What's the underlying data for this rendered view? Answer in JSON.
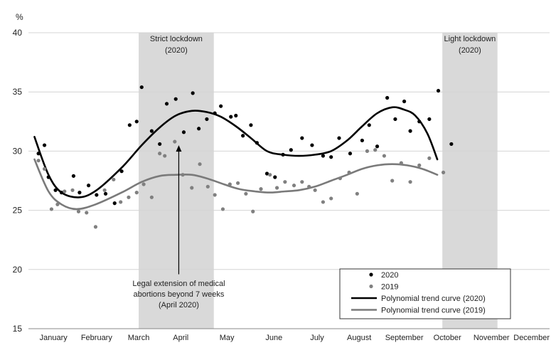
{
  "chart_data": {
    "type": "scatter",
    "ylabel": "%",
    "ylim": [
      15,
      40
    ],
    "yticks": [
      15,
      20,
      25,
      30,
      35,
      40
    ],
    "xlim": [
      0,
      52
    ],
    "months": [
      {
        "label": "January",
        "week": 2.5
      },
      {
        "label": "February",
        "week": 6.8
      },
      {
        "label": "March",
        "week": 11.0
      },
      {
        "label": "April",
        "week": 15.2
      },
      {
        "label": "May",
        "week": 19.8
      },
      {
        "label": "June",
        "week": 24.5
      },
      {
        "label": "July",
        "week": 28.8
      },
      {
        "label": "August",
        "week": 33.0
      },
      {
        "label": "September",
        "week": 37.5
      },
      {
        "label": "October",
        "week": 41.8
      },
      {
        "label": "November",
        "week": 46.2
      },
      {
        "label": "December",
        "week": 50.2
      }
    ],
    "shaded_regions": [
      {
        "x0": 11.0,
        "x1": 18.5,
        "label_line1": "Strict lockdown",
        "label_line2": "(2020)"
      },
      {
        "x0": 41.3,
        "x1": 46.8,
        "label_line1": "Light lockdown",
        "label_line2": "(2020)"
      }
    ],
    "annotation": {
      "lines": [
        "Legal extension of medical",
        "abortions beyond 7 weeks",
        "(April 2020)"
      ],
      "x": 15.0,
      "y_label": 19.6,
      "arrow_to_y": 30.5
    },
    "series": [
      {
        "name": "2020",
        "color": "#000000",
        "points": [
          [
            1,
            29.8
          ],
          [
            1.6,
            30.5
          ],
          [
            2,
            27.8
          ],
          [
            2.7,
            26.7
          ],
          [
            3.3,
            26.5
          ],
          [
            4.5,
            27.9
          ],
          [
            5.1,
            26.5
          ],
          [
            6,
            27.1
          ],
          [
            6.8,
            26.3
          ],
          [
            7.7,
            26.4
          ],
          [
            8.6,
            25.6
          ],
          [
            9.3,
            28.3
          ],
          [
            10.1,
            32.2
          ],
          [
            10.8,
            32.5
          ],
          [
            11.3,
            35.4
          ],
          [
            12.3,
            31.7
          ],
          [
            13.1,
            30.6
          ],
          [
            13.8,
            34.0
          ],
          [
            14.7,
            34.4
          ],
          [
            15.5,
            31.6
          ],
          [
            16.4,
            34.9
          ],
          [
            17.0,
            31.9
          ],
          [
            17.8,
            32.7
          ],
          [
            18.6,
            33.2
          ],
          [
            19.2,
            33.8
          ],
          [
            20.2,
            32.9
          ],
          [
            20.7,
            33.0
          ],
          [
            21.4,
            31.3
          ],
          [
            22.2,
            32.2
          ],
          [
            22.8,
            30.7
          ],
          [
            23.8,
            28.1
          ],
          [
            24.6,
            27.8
          ],
          [
            25.4,
            29.7
          ],
          [
            26.2,
            30.1
          ],
          [
            27.3,
            31.1
          ],
          [
            28.3,
            30.5
          ],
          [
            29.4,
            29.6
          ],
          [
            30.2,
            29.5
          ],
          [
            31.0,
            31.1
          ],
          [
            32.1,
            29.8
          ],
          [
            33.3,
            30.9
          ],
          [
            34.0,
            32.2
          ],
          [
            34.8,
            30.4
          ],
          [
            35.8,
            34.5
          ],
          [
            36.6,
            32.7
          ],
          [
            37.5,
            34.2
          ],
          [
            38.1,
            31.7
          ],
          [
            39.0,
            32.5
          ],
          [
            40.0,
            32.7
          ],
          [
            40.9,
            35.1
          ],
          [
            42.2,
            30.6
          ]
        ]
      },
      {
        "name": "2019",
        "color": "#808080",
        "points": [
          [
            1,
            29.2
          ],
          [
            1.6,
            28.5
          ],
          [
            2.3,
            25.1
          ],
          [
            2.9,
            25.5
          ],
          [
            3.6,
            26.6
          ],
          [
            4.4,
            26.7
          ],
          [
            5.0,
            24.9
          ],
          [
            5.8,
            24.8
          ],
          [
            6.7,
            23.6
          ],
          [
            7.6,
            26.7
          ],
          [
            8.5,
            27.6
          ],
          [
            9.2,
            25.7
          ],
          [
            10.0,
            26.1
          ],
          [
            10.8,
            26.5
          ],
          [
            11.5,
            27.2
          ],
          [
            12.3,
            26.1
          ],
          [
            13.1,
            29.8
          ],
          [
            13.6,
            29.6
          ],
          [
            14.6,
            30.8
          ],
          [
            15.4,
            28.0
          ],
          [
            16.3,
            26.9
          ],
          [
            17.1,
            28.9
          ],
          [
            17.9,
            27.0
          ],
          [
            18.6,
            26.3
          ],
          [
            19.4,
            25.1
          ],
          [
            20.1,
            27.2
          ],
          [
            20.9,
            27.3
          ],
          [
            21.7,
            26.4
          ],
          [
            22.4,
            24.9
          ],
          [
            23.2,
            26.8
          ],
          [
            24.1,
            28.0
          ],
          [
            24.8,
            26.9
          ],
          [
            25.6,
            27.4
          ],
          [
            26.5,
            27.1
          ],
          [
            27.3,
            27.4
          ],
          [
            28.0,
            27.0
          ],
          [
            28.6,
            26.7
          ],
          [
            29.4,
            25.7
          ],
          [
            30.2,
            26.0
          ],
          [
            31.1,
            27.7
          ],
          [
            32.0,
            28.2
          ],
          [
            32.8,
            26.4
          ],
          [
            33.8,
            30.0
          ],
          [
            34.6,
            30.1
          ],
          [
            35.5,
            29.6
          ],
          [
            36.3,
            27.5
          ],
          [
            37.2,
            29.0
          ],
          [
            38.1,
            27.4
          ],
          [
            39.0,
            28.8
          ],
          [
            40.0,
            29.4
          ],
          [
            41.4,
            28.2
          ]
        ]
      }
    ],
    "trend_curves": [
      {
        "name": "Polynomial trend curve (2020)",
        "color": "#000000",
        "width": 2.6,
        "points": [
          [
            0.6,
            31.2
          ],
          [
            2,
            28.0
          ],
          [
            3.3,
            26.5
          ],
          [
            5.1,
            26.1
          ],
          [
            6.8,
            26.7
          ],
          [
            9.3,
            28.6
          ],
          [
            11.3,
            30.5
          ],
          [
            13.1,
            32.0
          ],
          [
            14.7,
            33.0
          ],
          [
            16.3,
            33.4
          ],
          [
            17.8,
            33.3
          ],
          [
            19.2,
            32.9
          ],
          [
            20.7,
            32.1
          ],
          [
            22.2,
            31.1
          ],
          [
            23.8,
            30.0
          ],
          [
            25.4,
            29.7
          ],
          [
            27.0,
            29.6
          ],
          [
            28.6,
            29.7
          ],
          [
            30.2,
            30.0
          ],
          [
            31.8,
            30.9
          ],
          [
            33.3,
            32.1
          ],
          [
            34.8,
            33.2
          ],
          [
            36.3,
            33.7
          ],
          [
            37.5,
            33.5
          ],
          [
            38.6,
            33.0
          ],
          [
            39.8,
            31.5
          ],
          [
            40.8,
            29.3
          ]
        ]
      },
      {
        "name": "Polynomial trend curve (2019)",
        "color": "#7a7a7a",
        "width": 2.6,
        "points": [
          [
            0.6,
            29.3
          ],
          [
            2,
            26.6
          ],
          [
            3.3,
            25.5
          ],
          [
            4.8,
            25.1
          ],
          [
            6.7,
            25.5
          ],
          [
            9.3,
            26.5
          ],
          [
            11.3,
            27.4
          ],
          [
            13.1,
            27.9
          ],
          [
            14.7,
            28.0
          ],
          [
            16.3,
            28.0
          ],
          [
            17.8,
            27.7
          ],
          [
            19.5,
            27.2
          ],
          [
            21.0,
            26.8
          ],
          [
            22.6,
            26.6
          ],
          [
            24.1,
            26.5
          ],
          [
            25.6,
            26.6
          ],
          [
            27.0,
            26.7
          ],
          [
            28.6,
            27.0
          ],
          [
            30.2,
            27.5
          ],
          [
            31.8,
            28.0
          ],
          [
            33.3,
            28.5
          ],
          [
            34.8,
            28.8
          ],
          [
            36.3,
            28.9
          ],
          [
            37.8,
            28.8
          ],
          [
            39.3,
            28.5
          ],
          [
            40.8,
            28.0
          ]
        ]
      }
    ],
    "legend": {
      "position": "bottom-right",
      "items": [
        {
          "label": "2020",
          "kind": "dot",
          "color": "#000000"
        },
        {
          "label": "2019",
          "kind": "dot",
          "color": "#808080"
        },
        {
          "label": "Polynomial trend curve (2020)",
          "kind": "line",
          "color": "#000000"
        },
        {
          "label": "Polynomial trend curve (2019)",
          "kind": "line",
          "color": "#7a7a7a"
        }
      ]
    }
  }
}
